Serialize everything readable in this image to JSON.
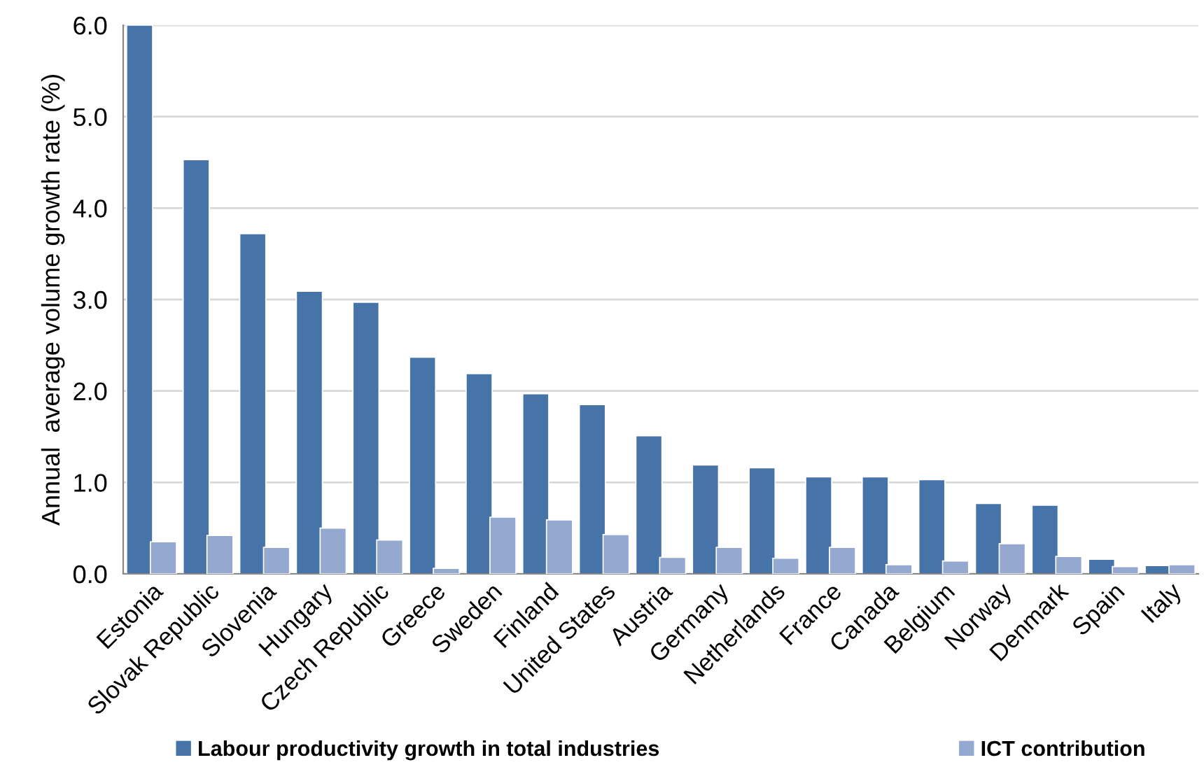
{
  "chart_data": {
    "type": "bar",
    "ylabel": "Annual  average volume growth rate (%)",
    "categories": [
      "Estonia",
      "Slovak Republic",
      "Slovenia",
      "Hungary",
      "Czech Republic",
      "Greece",
      "Sweden",
      "Finland",
      "United States",
      "Austria",
      "Germany",
      "Netherlands",
      "France",
      "Canada",
      "Belgium",
      "Norway",
      "Denmark",
      "Spain",
      "Italy"
    ],
    "series": [
      {
        "name": "Labour productivity growth in total industries",
        "color": "#4673a8",
        "values": [
          6.0,
          4.53,
          3.72,
          3.09,
          2.97,
          2.37,
          2.19,
          1.97,
          1.85,
          1.51,
          1.19,
          1.16,
          1.06,
          1.06,
          1.03,
          0.77,
          0.75,
          0.16,
          0.09
        ]
      },
      {
        "name": "ICT contribution",
        "color": "#95a9d0",
        "values": [
          0.35,
          0.42,
          0.29,
          0.5,
          0.37,
          0.06,
          0.62,
          0.59,
          0.43,
          0.18,
          0.29,
          0.17,
          0.29,
          0.1,
          0.14,
          0.33,
          0.19,
          0.08,
          0.1
        ]
      }
    ],
    "ylim": [
      0,
      6.0
    ],
    "yticks": [
      {
        "value": 0,
        "label": "0.0"
      },
      {
        "value": 1,
        "label": "1.0"
      },
      {
        "value": 2,
        "label": "2.0"
      },
      {
        "value": 3,
        "label": "3.0"
      },
      {
        "value": 4,
        "label": "4.0"
      },
      {
        "value": 5,
        "label": "5.0"
      },
      {
        "value": 6,
        "label": "6.0"
      }
    ],
    "grid": "y",
    "legend": "bottom"
  }
}
